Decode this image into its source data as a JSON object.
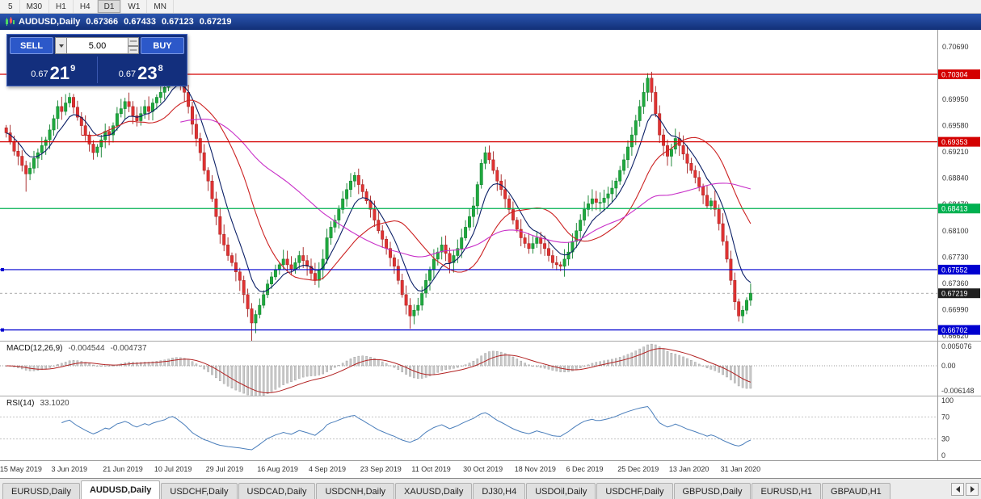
{
  "toolbar": {
    "timeframes": [
      "5",
      "M30",
      "H1",
      "H4",
      "D1",
      "W1",
      "MN"
    ],
    "active": "D1"
  },
  "chart_header": {
    "symbol": "AUDUSD,Daily",
    "open": "0.67366",
    "high": "0.67433",
    "low": "0.67123",
    "close": "0.67219"
  },
  "trade_panel": {
    "sell_label": "SELL",
    "buy_label": "BUY",
    "volume": "5.00",
    "sell_price": {
      "prefix": "0.67",
      "big": "21",
      "sup": "9"
    },
    "buy_price": {
      "prefix": "0.67",
      "big": "23",
      "sup": "8"
    }
  },
  "price_axis": {
    "ticks": [
      "0.70690",
      "0.70320",
      "0.69950",
      "0.69580",
      "0.69210",
      "0.68840",
      "0.68470",
      "0.68100",
      "0.67730",
      "0.67360",
      "0.66990",
      "0.66620"
    ]
  },
  "macd": {
    "label": "MACD(12,26,9)",
    "value_main": "-0.004544",
    "value_signal": "-0.004737",
    "axis_top": "0.005076",
    "axis_zero": "0.00",
    "axis_bottom": "-0.006148"
  },
  "rsi": {
    "label": "RSI(14)",
    "value": "33.1020",
    "axis": [
      "100",
      "70",
      "30",
      "0"
    ]
  },
  "dates": [
    "15 May 2019",
    "3 Jun 2019",
    "21 Jun 2019",
    "10 Jul 2019",
    "29 Jul 2019",
    "16 Aug 2019",
    "4 Sep 2019",
    "23 Sep 2019",
    "11 Oct 2019",
    "30 Oct 2019",
    "18 Nov 2019",
    "6 Dec 2019",
    "25 Dec 2019",
    "13 Jan 2020",
    "31 Jan 2020"
  ],
  "tabs": {
    "active_index": 1,
    "items": [
      "EURUSD,Daily",
      "AUDUSD,Daily",
      "USDCHF,Daily",
      "USDCAD,Daily",
      "USDCNH,Daily",
      "XAUUSD,Daily",
      "DJ30,H4",
      "USDOil,Daily",
      "USDCHF,Daily",
      "GBPUSD,Daily",
      "EURUSD,H1",
      "GBPAUD,H1"
    ]
  },
  "chart_data": {
    "type": "candlestick",
    "symbol": "AUDUSD",
    "timeframe": "Daily",
    "ohlc_display": {
      "open": 0.67366,
      "high": 0.67433,
      "low": 0.67123,
      "close": 0.67219
    },
    "ylim": [
      0.6655,
      0.7093
    ],
    "open_first": 0.6955,
    "closes": [
      0.6948,
      0.6936,
      0.6922,
      0.6915,
      0.6902,
      0.689,
      0.6898,
      0.6912,
      0.692,
      0.693,
      0.6938,
      0.6952,
      0.6968,
      0.6985,
      0.6978,
      0.699,
      0.6998,
      0.6984,
      0.697,
      0.6958,
      0.6945,
      0.6932,
      0.692,
      0.6928,
      0.6938,
      0.695,
      0.6945,
      0.6958,
      0.6975,
      0.6982,
      0.6992,
      0.6985,
      0.6972,
      0.6965,
      0.6975,
      0.6985,
      0.6978,
      0.699,
      0.6998,
      0.7005,
      0.7012,
      0.7028,
      0.7038,
      0.703,
      0.7018,
      0.7005,
      0.6985,
      0.696,
      0.694,
      0.692,
      0.6895,
      0.688,
      0.6855,
      0.683,
      0.6805,
      0.679,
      0.6775,
      0.6765,
      0.6752,
      0.674,
      0.672,
      0.67,
      0.668,
      0.6692,
      0.6705,
      0.672,
      0.6735,
      0.6745,
      0.6755,
      0.6762,
      0.677,
      0.6762,
      0.6755,
      0.6765,
      0.6775,
      0.6768,
      0.676,
      0.675,
      0.674,
      0.6755,
      0.677,
      0.68,
      0.6815,
      0.6825,
      0.684,
      0.6855,
      0.6868,
      0.688,
      0.6888,
      0.6875,
      0.6865,
      0.6852,
      0.684,
      0.6825,
      0.681,
      0.6798,
      0.6785,
      0.6772,
      0.676,
      0.674,
      0.672,
      0.6705,
      0.669,
      0.6698,
      0.6705,
      0.6722,
      0.674,
      0.6755,
      0.677,
      0.678,
      0.679,
      0.6778,
      0.6765,
      0.6775,
      0.6785,
      0.68,
      0.6815,
      0.683,
      0.6845,
      0.6875,
      0.6905,
      0.692,
      0.691,
      0.6895,
      0.688,
      0.6868,
      0.6855,
      0.684,
      0.6825,
      0.6812,
      0.68,
      0.6792,
      0.6785,
      0.6792,
      0.68,
      0.6792,
      0.6785,
      0.6775,
      0.6765,
      0.6762,
      0.676,
      0.677,
      0.678,
      0.6795,
      0.681,
      0.6825,
      0.684,
      0.6848,
      0.6855,
      0.685,
      0.685,
      0.6856,
      0.6862,
      0.687,
      0.688,
      0.6895,
      0.691,
      0.6928,
      0.6945,
      0.6965,
      0.6985,
      0.7005,
      0.7025,
      0.7005,
      0.6975,
      0.6945,
      0.693,
      0.6915,
      0.6925,
      0.694,
      0.693,
      0.6918,
      0.6905,
      0.6895,
      0.6885,
      0.6872,
      0.686,
      0.6845,
      0.6852,
      0.684,
      0.682,
      0.6795,
      0.677,
      0.674,
      0.671,
      0.669,
      0.6698,
      0.6712,
      0.6722
    ],
    "wick_overrides": {
      "5": {
        "low": 0.6865
      },
      "42": {
        "high": 0.7048
      },
      "62": {
        "low": 0.6655
      },
      "102": {
        "low": 0.6672
      },
      "122": {
        "high": 0.693
      },
      "162": {
        "high": 0.7032
      },
      "185": {
        "low": 0.6682
      }
    },
    "colors": {
      "up": "#1fa93e",
      "up_stroke": "#0c7f2a",
      "down": "#e03232",
      "down_stroke": "#a32020"
    },
    "moving_averages": [
      {
        "type": "ema",
        "period": 8,
        "color": "#0b1f66"
      },
      {
        "type": "sma",
        "period": 20,
        "color": "#cc2222"
      },
      {
        "type": "sma",
        "period": 45,
        "color": "#c82fc8"
      }
    ],
    "hlines": [
      {
        "value": 0.70304,
        "label": "0.70304",
        "color": "#d40000",
        "marker": false
      },
      {
        "value": 0.69353,
        "label": "0.69353",
        "color": "#d40000",
        "marker": false
      },
      {
        "value": 0.68413,
        "label": "0.68413",
        "color": "#00b050",
        "marker": false
      },
      {
        "value": 0.67552,
        "label": "0.67552",
        "color": "#0000d0",
        "marker": true
      },
      {
        "value": 0.66702,
        "label": "0.66702",
        "color": "#0000d0",
        "marker": true
      }
    ],
    "current_price": {
      "value": 0.67219,
      "label": "0.67219",
      "color": "#1f1f1f"
    },
    "macd_params": {
      "fast": 12,
      "slow": 26,
      "signal": 9
    },
    "macd_ylim": [
      -0.0063,
      0.0052
    ],
    "rsi_period": 14,
    "rsi_levels": [
      70,
      30
    ]
  }
}
